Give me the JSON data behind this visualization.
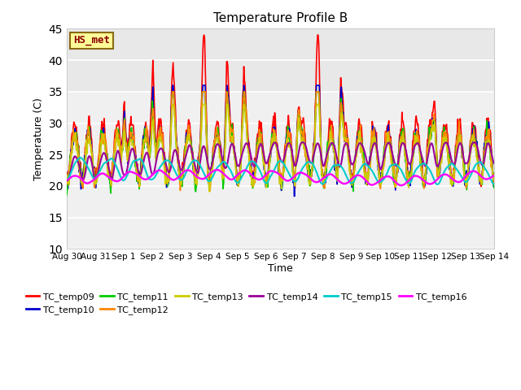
{
  "title": "Temperature Profile B",
  "xlabel": "Time",
  "ylabel": "Temperature (C)",
  "ylim": [
    10,
    45
  ],
  "annotation": "HS_met",
  "series_colors": {
    "TC_temp09": "#ff0000",
    "TC_temp10": "#0000cc",
    "TC_temp11": "#00cc00",
    "TC_temp12": "#ff8800",
    "TC_temp13": "#cccc00",
    "TC_temp14": "#990099",
    "TC_temp15": "#00cccc",
    "TC_temp16": "#ff00ff"
  },
  "tick_labels": [
    "Aug 30",
    "Aug 31",
    "Sep 1",
    "Sep 2",
    "Sep 3",
    "Sep 4",
    "Sep 5",
    "Sep 6",
    "Sep 7",
    "Sep 8",
    "Sep 9",
    "Sep 10",
    "Sep 11",
    "Sep 12",
    "Sep 13",
    "Sep 14"
  ],
  "bg_band_color": "#e8e8e8",
  "bg_axes_color": "#f0f0f0",
  "grid_color": "#ffffff"
}
